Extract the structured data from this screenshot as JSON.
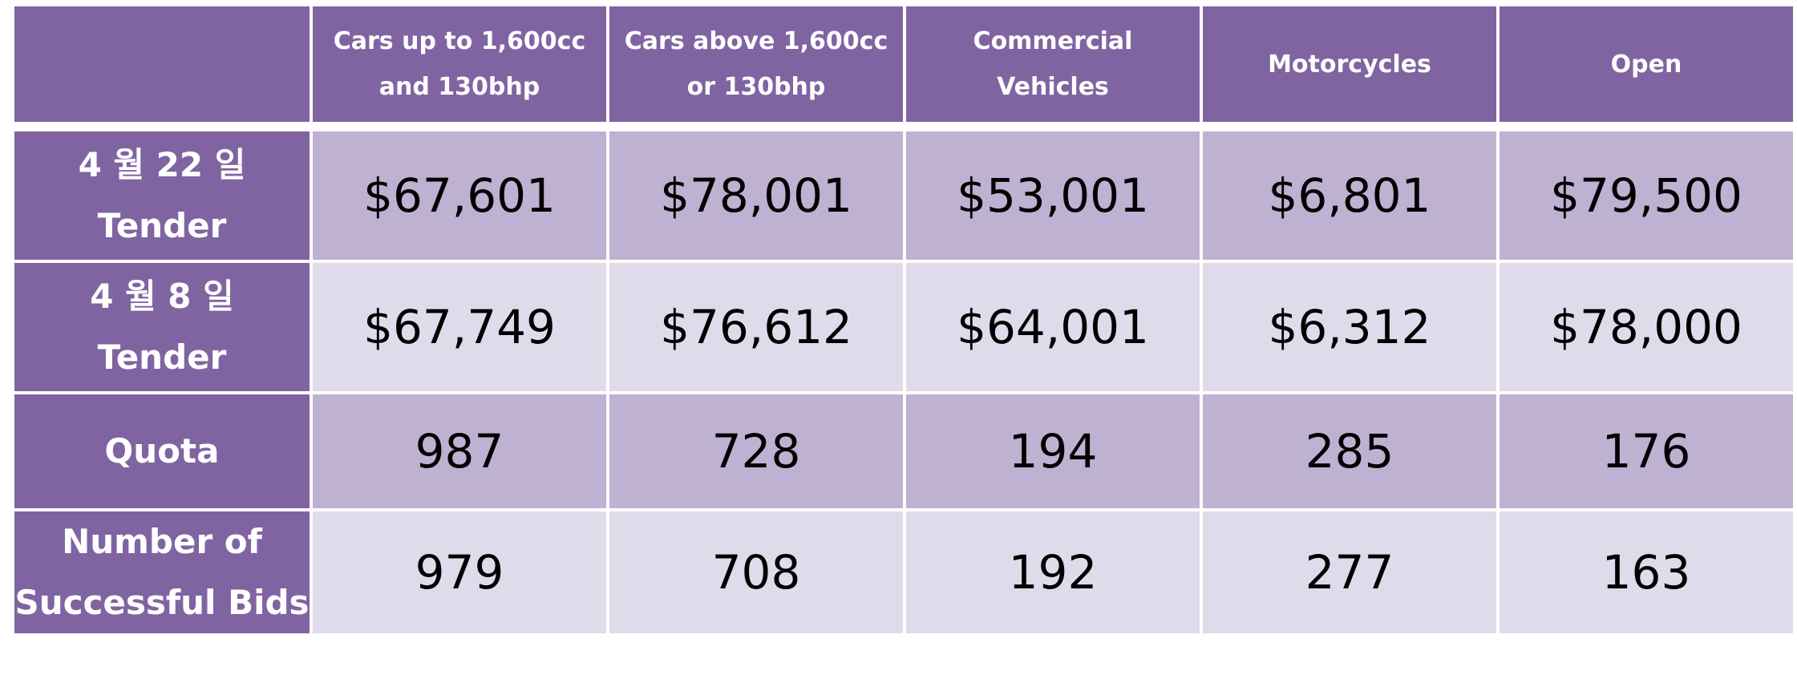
{
  "table": {
    "headers": [
      "",
      [
        "Cars up to 1,600cc",
        "and 130bhp"
      ],
      [
        "Cars above 1,600cc",
        "or 130bhp"
      ],
      [
        "Commercial",
        "Vehicles"
      ],
      [
        "Motorcycles"
      ],
      [
        "Open"
      ]
    ],
    "rows": [
      {
        "label": [
          "4 월 22 일",
          "Tender"
        ],
        "cells": [
          "$67,601",
          "$78,001",
          "$53,001",
          "$6,801",
          "$79,500"
        ]
      },
      {
        "label": [
          "4 월 8 일",
          "Tender"
        ],
        "cells": [
          "$67,749",
          "$76,612",
          "$64,001",
          "$6,312",
          "$78,000"
        ]
      },
      {
        "label": [
          "Quota"
        ],
        "cells": [
          "987",
          "728",
          "194",
          "285",
          "176"
        ]
      },
      {
        "label": [
          "Number of",
          "Successful Bids"
        ],
        "cells": [
          "979",
          "708",
          "192",
          "277",
          "163"
        ]
      }
    ]
  },
  "colors": {
    "header_bg": "#8064a2",
    "band_dark": "#bfb1d1",
    "band_light": "#e0dbea"
  }
}
